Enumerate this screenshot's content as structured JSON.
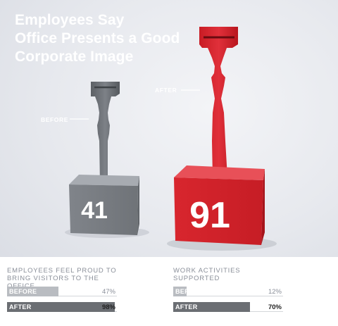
{
  "headline": {
    "line1": "Employees Say",
    "line2": "Office Presents a Good",
    "line3": "Corporate Image"
  },
  "photo": {
    "before_label": "BEFORE",
    "after_label": "AFTER",
    "before_value": "41",
    "after_value": "91"
  },
  "colors": {
    "before_gray": "#8a8d92",
    "after_red": "#d5242c",
    "bar_before": "#b9bcc1",
    "bar_after": "#6b6e73"
  },
  "chart_data": [
    {
      "type": "bar",
      "title": "EMPLOYEES FEEL PROUD TO BRING VISITORS TO THE OFFICE",
      "categories": [
        "BEFORE",
        "AFTER"
      ],
      "values": [
        47,
        98
      ],
      "value_labels": [
        "47%",
        "98%"
      ],
      "ylim": [
        0,
        100
      ]
    },
    {
      "type": "bar",
      "title": "WORK ACTIVITIES SUPPORTED",
      "categories": [
        "BEFORE",
        "AFTER"
      ],
      "values": [
        12,
        70
      ],
      "value_labels": [
        "12%",
        "70%"
      ],
      "ylim": [
        0,
        100
      ]
    }
  ]
}
